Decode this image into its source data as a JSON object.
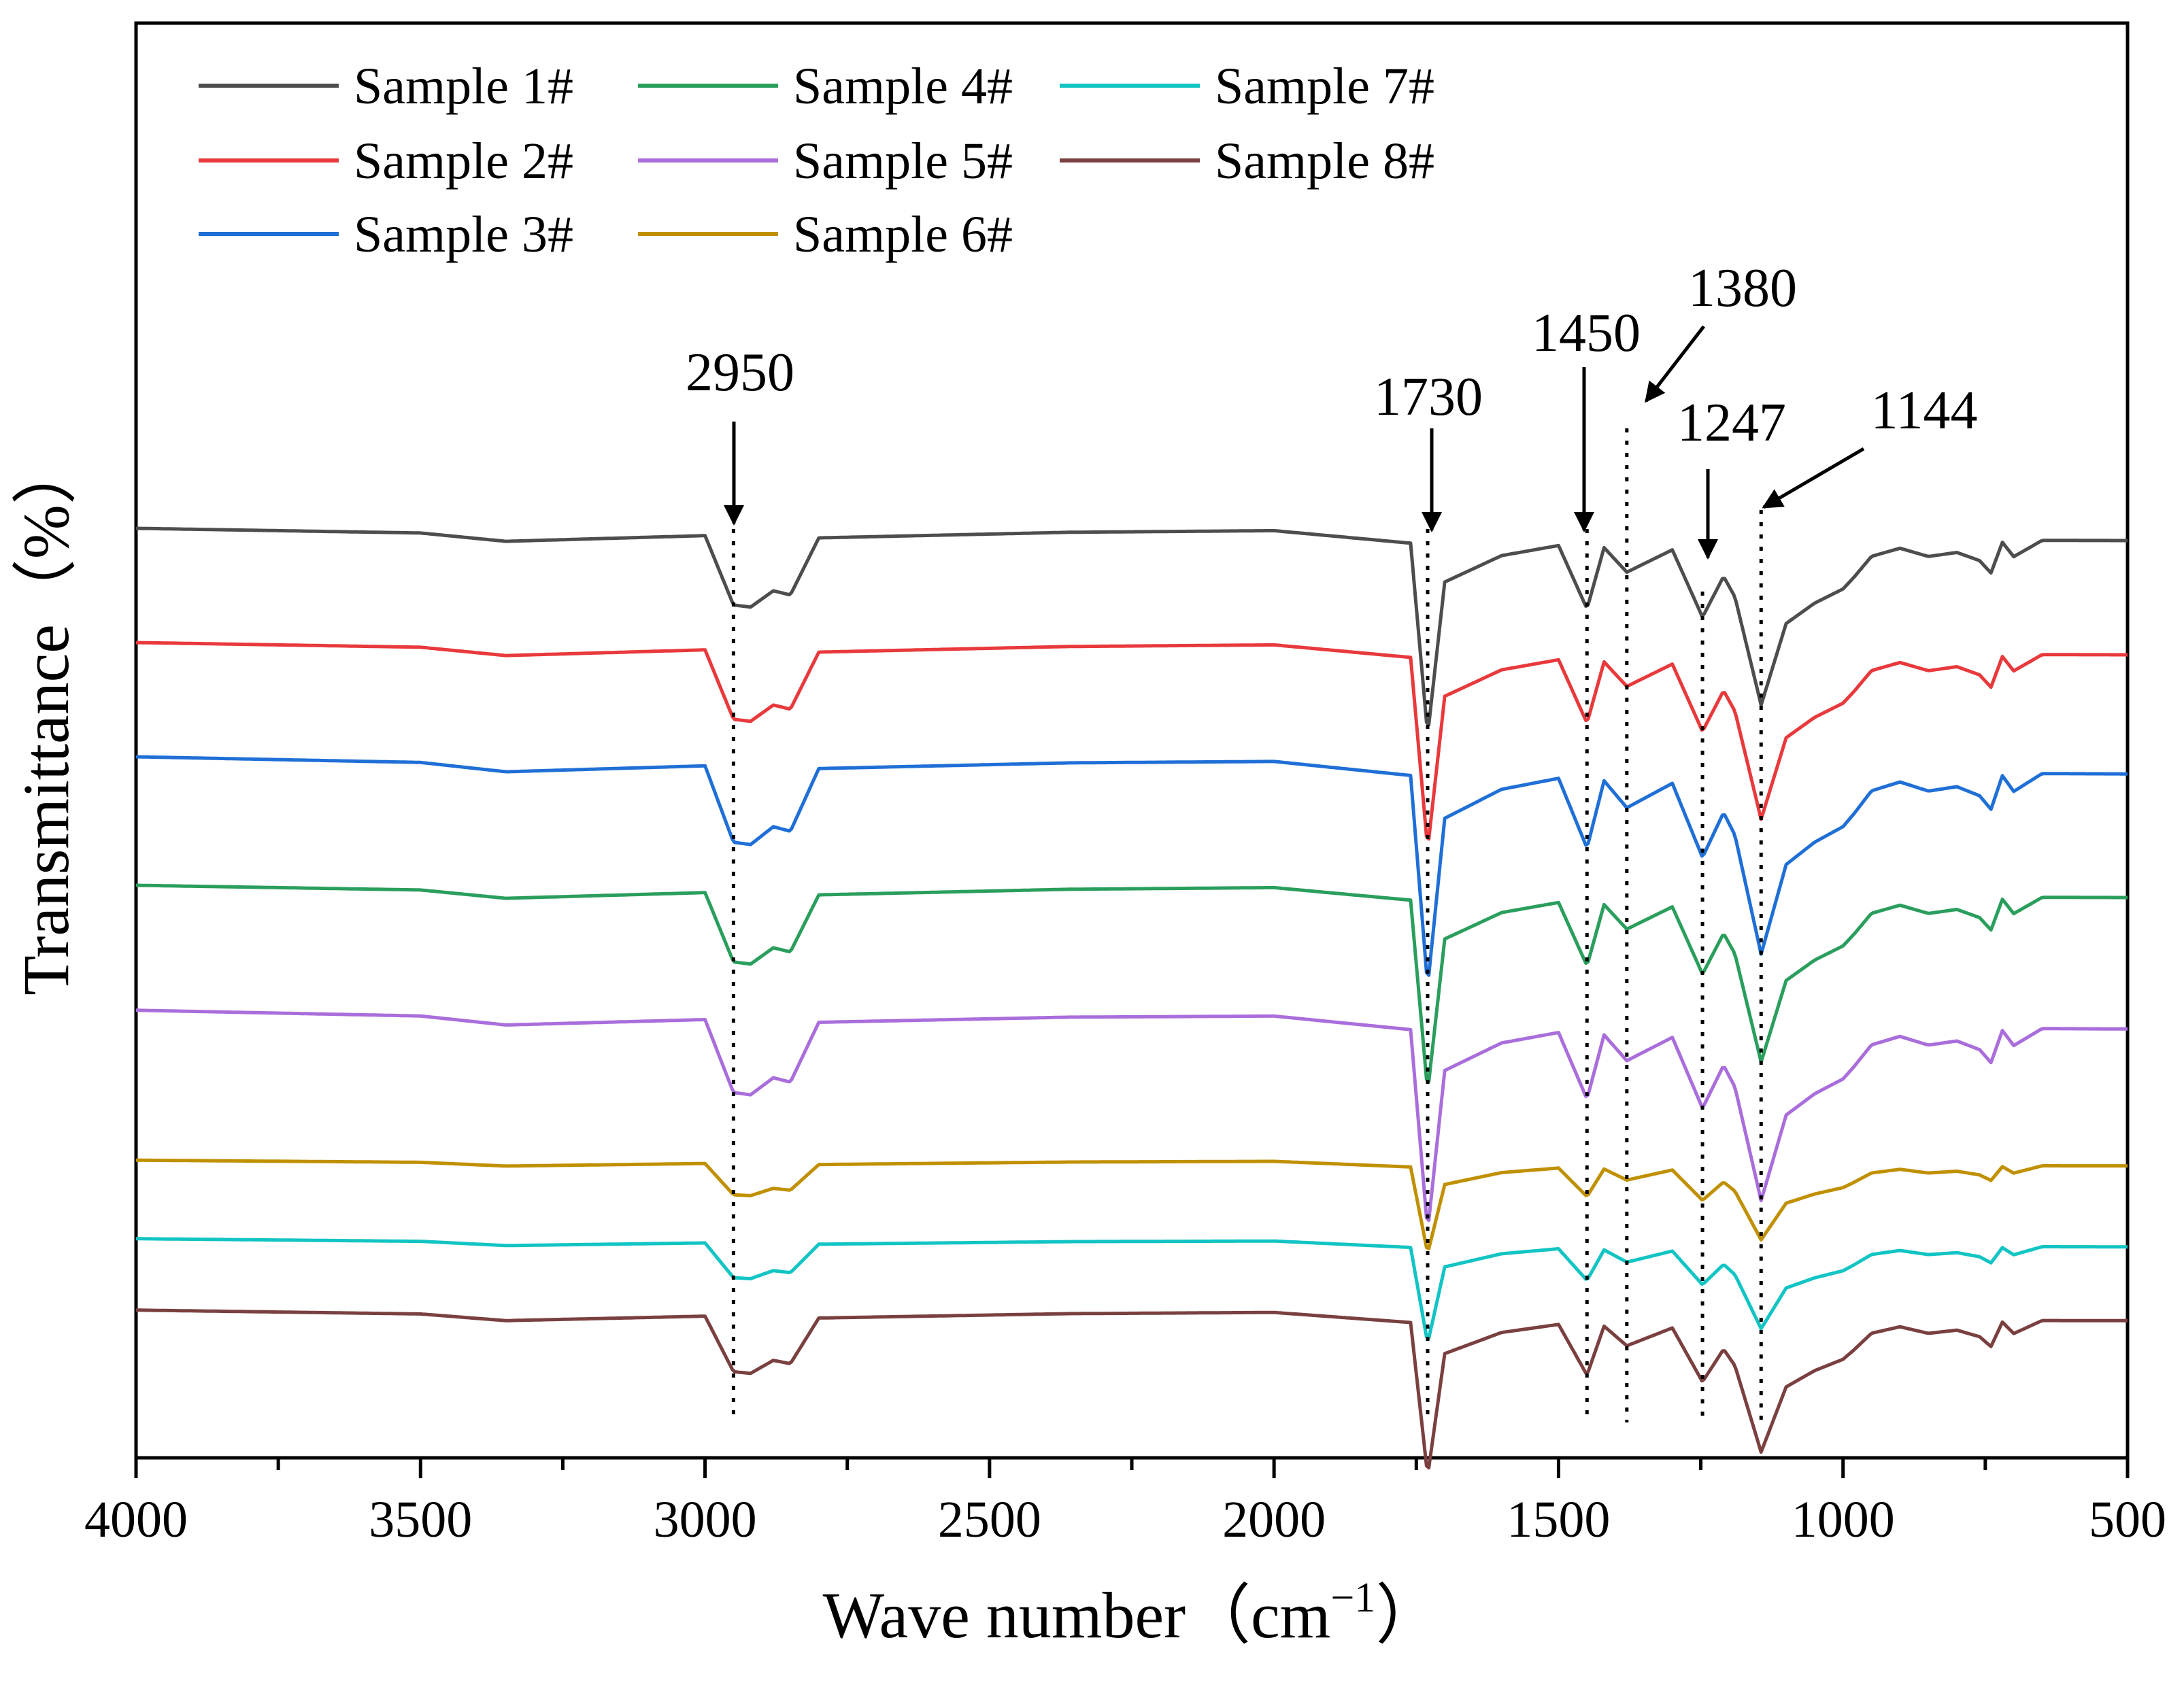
{
  "chart_data": {
    "type": "line",
    "title": "",
    "xlabel": "Wave number（cm",
    "xlabel_sup": "−1",
    "xlabel_close": "）",
    "ylabel": "Transmittance（%）",
    "xlim": [
      4000,
      500
    ],
    "x_reversed": true,
    "yticks_labeled": false,
    "grid": false,
    "legend": {
      "placement": "top-left",
      "columns": 3
    },
    "x_ticks": [
      4000,
      3500,
      3000,
      2500,
      2000,
      1500,
      1000,
      500
    ],
    "x_tick_labels": [
      "4000",
      "3500",
      "3000",
      "2500",
      "2000",
      "1500",
      "1000",
      "500"
    ],
    "peaks_reference": {
      "x": [
        4000,
        3500,
        3350,
        3000,
        2950,
        2920,
        2880,
        2850,
        2800,
        2360,
        2000,
        1760,
        1730,
        1700,
        1600,
        1500,
        1450,
        1420,
        1380,
        1300,
        1247,
        1210,
        1190,
        1144,
        1100,
        1050,
        1000,
        980,
        950,
        900,
        850,
        800,
        760,
        740,
        720,
        700,
        650,
        500
      ],
      "depth": [
        0,
        0.02,
        0.06,
        0.03,
        0.37,
        0.38,
        0.3,
        0.32,
        0.04,
        0.01,
        0,
        0.06,
        1.0,
        0.25,
        0.12,
        0.07,
        0.38,
        0.08,
        0.2,
        0.09,
        0.42,
        0.22,
        0.32,
        0.85,
        0.45,
        0.35,
        0.28,
        0.22,
        0.12,
        0.08,
        0.12,
        0.1,
        0.14,
        0.2,
        0.05,
        0.12,
        0.04,
        0.04
      ]
    },
    "annotations": [
      {
        "label": "2950",
        "x": 2950
      },
      {
        "label": "1730",
        "x": 1730
      },
      {
        "label": "1450",
        "x": 1450
      },
      {
        "label": "1380",
        "x": 1380
      },
      {
        "label": "1247",
        "x": 1247
      },
      {
        "label": "1144",
        "x": 1144
      }
    ],
    "series": [
      {
        "name": "Sample 1#",
        "color": "#4d4d4d",
        "offset": 1.0,
        "scale": 1.0,
        "skew": 0.02
      },
      {
        "name": "Sample 2#",
        "color": "#e8393c",
        "offset": 0.84,
        "scale": 1.0,
        "skew": 0.02
      },
      {
        "name": "Sample 3#",
        "color": "#1f6fd6",
        "offset": 0.68,
        "scale": 1.1,
        "skew": 0.04
      },
      {
        "name": "Sample 4#",
        "color": "#2a9e5c",
        "offset": 0.5,
        "scale": 1.0,
        "skew": 0.02
      },
      {
        "name": "Sample 5#",
        "color": "#a96edb",
        "offset": 0.325,
        "scale": 1.05,
        "skew": 0.05
      },
      {
        "name": "Sample 6#",
        "color": "#c09000",
        "offset": 0.115,
        "scale": 0.45,
        "skew": 0.01
      },
      {
        "name": "Sample 7#",
        "color": "#12c4c4",
        "offset": 0.005,
        "scale": 0.5,
        "skew": 0.02
      },
      {
        "name": "Sample 8#",
        "color": "#7a4040",
        "offset": -0.095,
        "scale": 0.8,
        "skew": 0.02
      }
    ]
  }
}
